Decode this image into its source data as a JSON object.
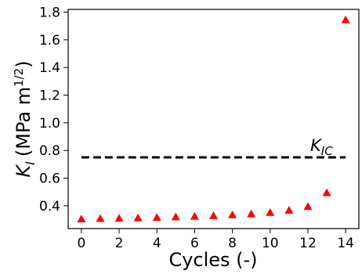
{
  "chart_data": {
    "type": "scatter",
    "xlabel": "Cycles (-)",
    "ylabel": {
      "symbol": "K",
      "subscript": "I",
      "unit_prefix": "(MPa m",
      "unit_exponent": "1/2",
      "unit_suffix": ")"
    },
    "xlim": [
      -0.7,
      14.7
    ],
    "ylim": [
      0.235,
      1.82
    ],
    "xticks": [
      0,
      2,
      4,
      6,
      8,
      10,
      12,
      14
    ],
    "xtick_labels": [
      "0",
      "2",
      "4",
      "6",
      "8",
      "10",
      "12",
      "14"
    ],
    "yticks": [
      0.4,
      0.6,
      0.8,
      1.0,
      1.2,
      1.4,
      1.6,
      1.8
    ],
    "ytick_labels": [
      "0.4",
      "0.6",
      "0.8",
      "1.0",
      "1.2",
      "1.4",
      "1.6",
      "1.8"
    ],
    "grid": false,
    "series": [
      {
        "marker": "triangle",
        "color": "#ff0000",
        "x": [
          0,
          1,
          2,
          3,
          4,
          5,
          6,
          7,
          8,
          9,
          10,
          11,
          12,
          13,
          14
        ],
        "y": [
          0.305,
          0.308,
          0.31,
          0.313,
          0.316,
          0.32,
          0.324,
          0.329,
          0.335,
          0.342,
          0.352,
          0.368,
          0.395,
          0.495,
          1.745
        ]
      }
    ],
    "reference_line": {
      "y": 0.75,
      "x_range": [
        0,
        14
      ],
      "style": "dashed",
      "color": "#000000",
      "label_symbol": "K",
      "label_subscript": "IC"
    }
  }
}
